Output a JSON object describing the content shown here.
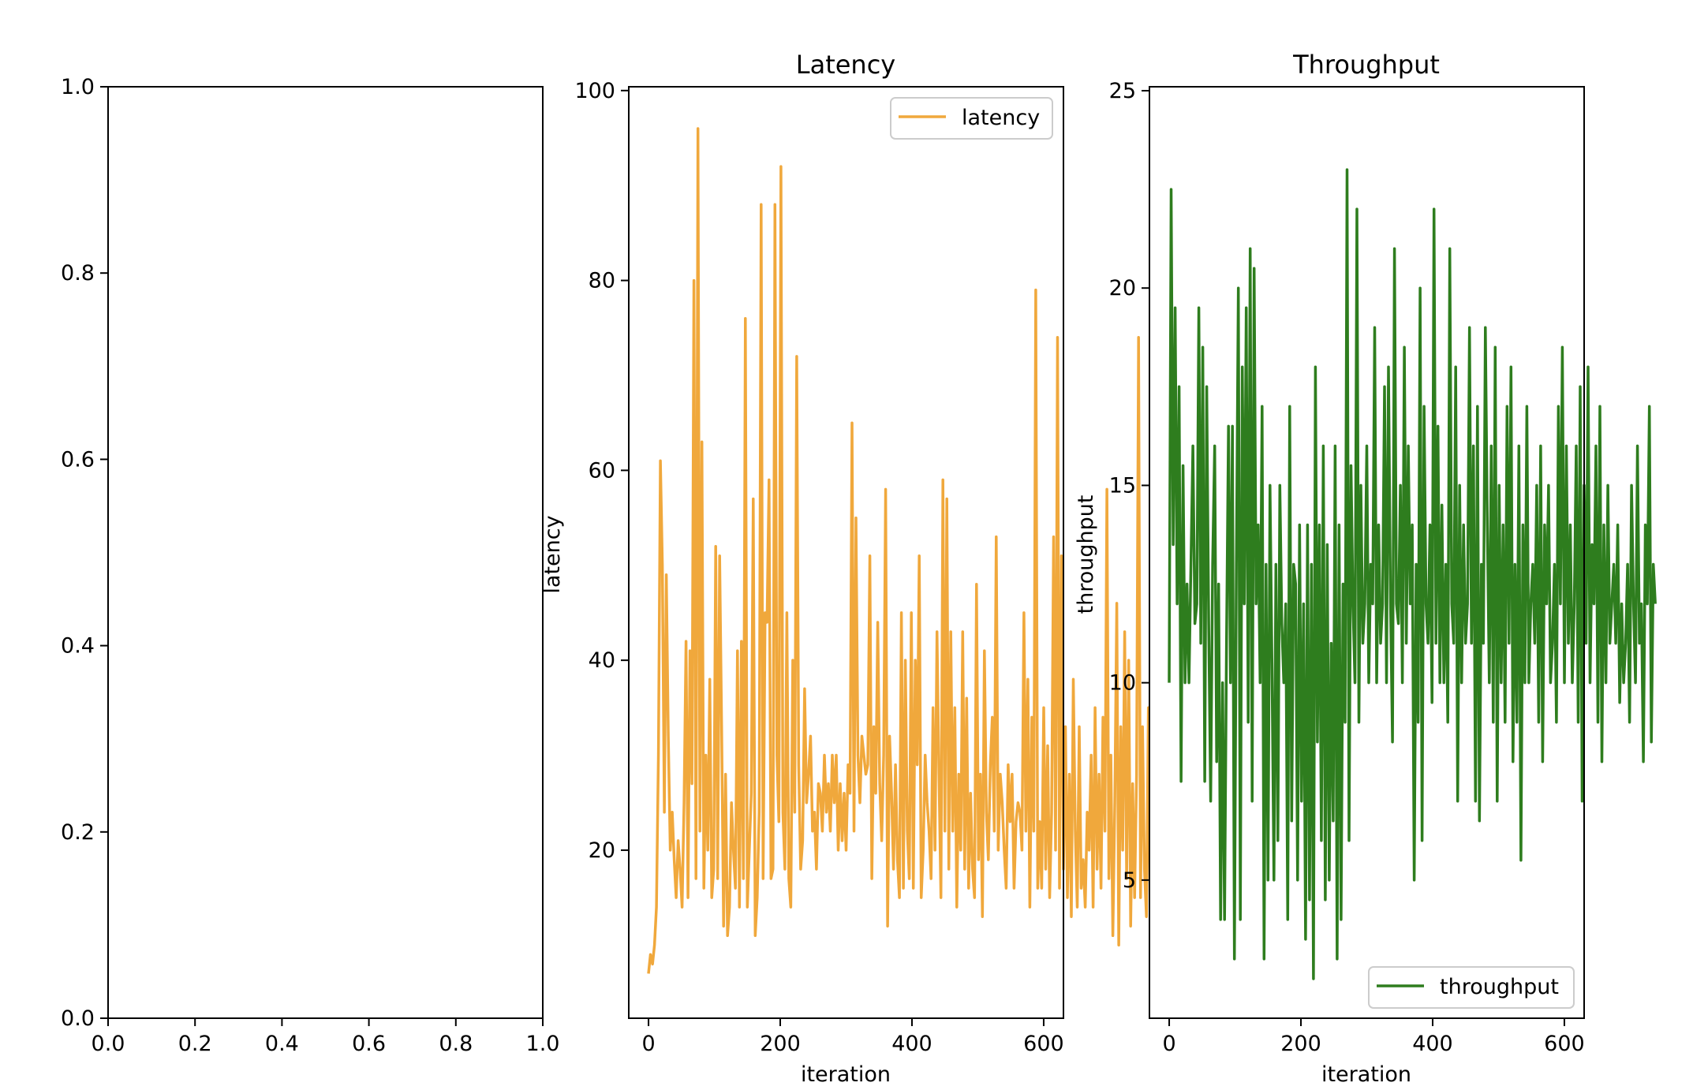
{
  "chart_data": [
    {
      "type": "line",
      "title": "",
      "xlabel": "",
      "ylabel": "",
      "xlim": [
        0,
        1
      ],
      "ylim": [
        0,
        1
      ],
      "xticks": [
        "0.0",
        "0.2",
        "0.4",
        "0.6",
        "0.8",
        "1.0"
      ],
      "yticks": [
        "0.0",
        "0.2",
        "0.4",
        "0.6",
        "0.8",
        "1.0"
      ],
      "series": []
    },
    {
      "type": "line",
      "title": "Latency",
      "xlabel": "iteration",
      "ylabel": "latency",
      "xlim": [
        -30,
        630
      ],
      "ylim": [
        2.3,
        100.4
      ],
      "xticks": [
        "0",
        "200",
        "400",
        "600"
      ],
      "yticks": [
        "20",
        "40",
        "60",
        "80",
        "100"
      ],
      "legend": "upper right",
      "series": [
        {
          "name": "latency",
          "color": "#f0a83c",
          "x_start": 0,
          "x_step": 3,
          "values": [
            7,
            9,
            8,
            10,
            14,
            30,
            61,
            50,
            24,
            49,
            32,
            20,
            24,
            19,
            15,
            21,
            18,
            14,
            25,
            42,
            15,
            41,
            27,
            80,
            17,
            96,
            22,
            63,
            16,
            30,
            20,
            38,
            15,
            18,
            52,
            17,
            51,
            33,
            12,
            28,
            11,
            14,
            25,
            20,
            16,
            41,
            14,
            42,
            17,
            76,
            14,
            20,
            26,
            57,
            11,
            15,
            24,
            88,
            17,
            45,
            44,
            59,
            17,
            18,
            88,
            30,
            23,
            92,
            24,
            18,
            45,
            17,
            14,
            40,
            24,
            72,
            29,
            18,
            21,
            37,
            25,
            28,
            32,
            22,
            24,
            18,
            27,
            26,
            22,
            30,
            24,
            27,
            22,
            30,
            25,
            30,
            20,
            27,
            21,
            26,
            20,
            29,
            26,
            65,
            22,
            55,
            30,
            25,
            32,
            30,
            28,
            29,
            51,
            17,
            33,
            26,
            44,
            27,
            21,
            30,
            58,
            12,
            32,
            26,
            18,
            29,
            19,
            15,
            45,
            16,
            40,
            22,
            17,
            45,
            16,
            40,
            29,
            51,
            15,
            20,
            30,
            25,
            22,
            17,
            35,
            20,
            43,
            28,
            15,
            59,
            22,
            57,
            18,
            43,
            22,
            35,
            14,
            28,
            20,
            43,
            18,
            36,
            16,
            26,
            18,
            15,
            48,
            19,
            28,
            13,
            41,
            24,
            19,
            29,
            34,
            22,
            53,
            20,
            28,
            25,
            20,
            16,
            29,
            23,
            28,
            16,
            23,
            25,
            24,
            20,
            45,
            22,
            38,
            14,
            34,
            22,
            79,
            16,
            23,
            16,
            35,
            18,
            31,
            15,
            24,
            53,
            20,
            74,
            16,
            51,
            18,
            33,
            15,
            28,
            13,
            38,
            22,
            14,
            33,
            16,
            19,
            14,
            24,
            20,
            30,
            14,
            35,
            18,
            28,
            16,
            34,
            22,
            58,
            17,
            30,
            11,
            25,
            46,
            10,
            33,
            20,
            43,
            17,
            40,
            12,
            27,
            15,
            28,
            74,
            15,
            33,
            18,
            13,
            35,
            11,
            43,
            18,
            51,
            14,
            29
          ]
        }
      ]
    },
    {
      "type": "line",
      "title": "Throughput",
      "xlabel": "iteration",
      "ylabel": "throughput",
      "xlim": [
        -30,
        630
      ],
      "ylim": [
        1.5,
        25.1
      ],
      "xticks": [
        "0",
        "200",
        "400",
        "600"
      ],
      "yticks": [
        "5",
        "10",
        "15",
        "20",
        "25"
      ],
      "legend": "lower right",
      "series": [
        {
          "name": "throughput",
          "color": "#2e7d1e",
          "x_start": 0,
          "x_step": 3,
          "values": [
            10,
            22.5,
            13.5,
            19.5,
            12,
            17.5,
            7.5,
            15.5,
            10,
            12.5,
            10,
            13,
            16,
            11.5,
            12,
            19.5,
            11,
            18.5,
            7.5,
            17.5,
            11.5,
            7,
            13,
            16,
            8,
            12.5,
            4,
            10,
            4,
            11,
            16.5,
            10,
            16.5,
            3,
            13,
            20,
            4,
            18,
            12,
            19.5,
            9,
            21,
            7,
            20.5,
            12,
            14,
            10,
            17,
            3,
            13,
            5,
            15,
            10.5,
            5,
            13,
            6,
            15,
            11.5,
            10,
            12,
            4,
            17,
            6.5,
            13,
            12.5,
            5,
            14,
            7,
            12,
            3.5,
            14,
            4.5,
            13,
            2.5,
            18,
            8.5,
            14,
            6,
            16,
            4.5,
            13.5,
            5,
            11,
            6.5,
            16,
            3,
            14,
            4,
            12.5,
            9,
            23,
            6,
            15.5,
            12,
            10,
            22,
            9,
            15,
            11,
            12,
            16,
            10,
            13,
            12,
            19,
            10,
            14,
            11,
            12,
            17.5,
            10,
            18,
            12,
            8.5,
            21,
            12,
            11.5,
            15,
            10,
            18.5,
            11,
            16,
            12,
            14,
            5,
            13,
            9,
            20,
            6,
            17,
            12,
            11,
            14,
            9.5,
            22,
            11,
            16.5,
            10,
            14.5,
            10,
            13,
            9,
            21,
            12,
            11,
            18,
            7,
            15,
            10,
            14,
            11,
            12,
            19,
            11,
            16,
            7,
            17,
            6.5,
            13,
            11,
            19,
            14,
            10,
            16,
            9,
            18.5,
            7,
            15,
            10,
            14,
            9,
            17,
            11,
            18,
            8,
            13,
            9,
            16,
            5.5,
            14,
            10,
            17,
            10,
            12,
            13,
            11,
            15,
            9,
            16,
            8,
            14,
            12,
            15,
            10,
            11,
            13,
            9,
            17,
            12,
            18.5,
            10,
            16,
            11,
            14,
            10,
            12,
            16,
            9,
            17.5,
            7,
            15,
            11,
            18,
            10,
            13.5,
            12,
            16,
            9,
            17,
            8,
            14,
            10,
            15,
            11,
            12,
            13,
            11,
            14,
            9.5,
            12,
            10,
            11,
            13,
            9,
            15,
            12,
            10,
            16,
            11,
            12,
            8,
            14,
            12,
            17,
            8.5,
            13,
            12
          ]
        }
      ]
    }
  ]
}
